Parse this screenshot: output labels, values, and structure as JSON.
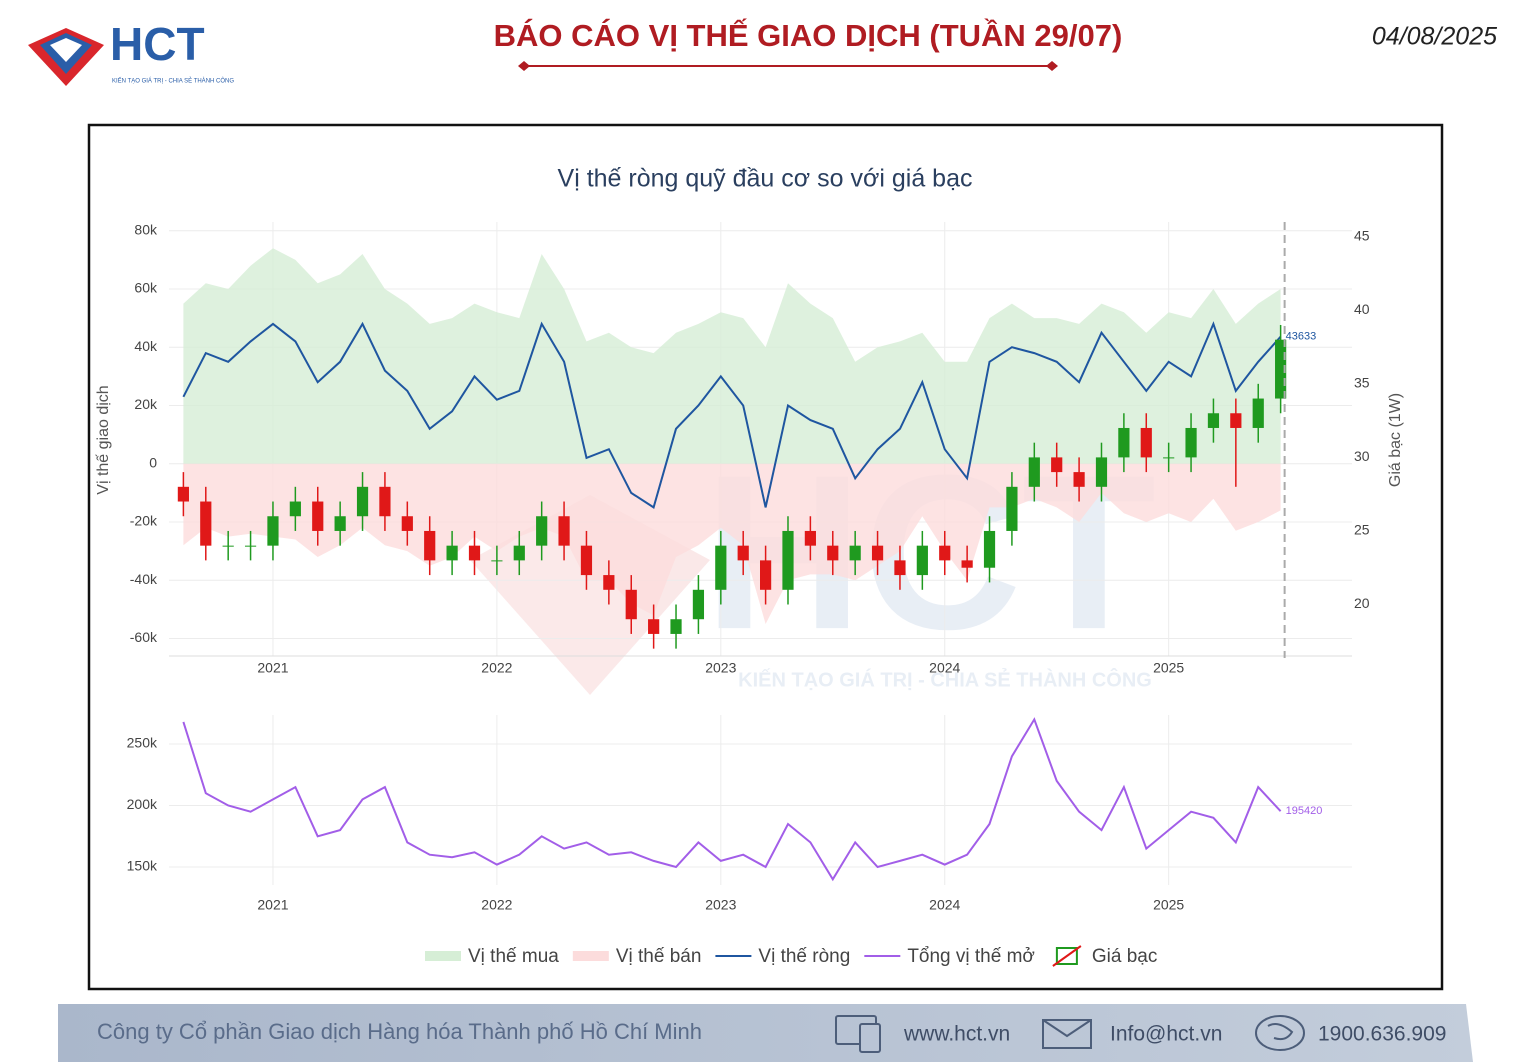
{
  "header": {
    "brand": "HCT",
    "tagline": "KIẾN TẠO GIÁ TRỊ - CHIA SẺ THÀNH CÔNG",
    "title": "BÁO CÁO VỊ THẾ GIAO DỊCH (TUẦN 29/07)",
    "date": "04/08/2025"
  },
  "chart_data": {
    "type": "combo",
    "title": "Vị thế ròng quỹ đầu cơ so với giá bạc",
    "ylabel": "Vị thế giao dịch",
    "y2label": "Giá bạc (1W)",
    "grid": true,
    "x": [
      2020.6,
      2020.7,
      2020.8,
      2020.9,
      2021.0,
      2021.1,
      2021.2,
      2021.3,
      2021.4,
      2021.5,
      2021.6,
      2021.7,
      2021.8,
      2021.9,
      2022.0,
      2022.1,
      2022.2,
      2022.3,
      2022.4,
      2022.5,
      2022.6,
      2022.7,
      2022.8,
      2022.9,
      2023.0,
      2023.1,
      2023.2,
      2023.3,
      2023.4,
      2023.5,
      2023.6,
      2023.7,
      2023.8,
      2023.9,
      2024.0,
      2024.1,
      2024.2,
      2024.3,
      2024.4,
      2024.5,
      2024.6,
      2024.7,
      2024.8,
      2024.9,
      2025.0,
      2025.1,
      2025.2,
      2025.3,
      2025.4,
      2025.5
    ],
    "xlim": [
      2020.5,
      2025.85
    ],
    "xticks": [
      2021,
      2022,
      2023,
      2024,
      2025
    ],
    "ylim": [
      -66000,
      83000
    ],
    "yticks": [
      {
        "value": -60000,
        "label": "-60k"
      },
      {
        "value": -40000,
        "label": "-40k"
      },
      {
        "value": -20000,
        "label": "-20k"
      },
      0,
      {
        "value": 20000,
        "label": "20k"
      },
      {
        "value": 40000,
        "label": "40k"
      },
      {
        "value": 60000,
        "label": "60k"
      },
      {
        "value": 80000,
        "label": "80k"
      }
    ],
    "y2lim": [
      16.5,
      46
    ],
    "y2ticks": [
      20,
      25,
      30,
      35,
      40,
      45
    ],
    "y3lim": [
      135400,
      273600
    ],
    "y3ticks": [
      {
        "value": 150000,
        "label": "150k"
      },
      {
        "value": 200000,
        "label": "200k"
      },
      {
        "value": 250000,
        "label": "250k"
      }
    ],
    "series": [
      {
        "name": "Vị thế mua",
        "type": "area",
        "color": "#d6eed6",
        "values": [
          55000,
          62000,
          60000,
          68000,
          74000,
          70000,
          62000,
          65000,
          72000,
          60000,
          55000,
          48000,
          50000,
          55000,
          52000,
          50000,
          72000,
          60000,
          42000,
          45000,
          40000,
          38000,
          45000,
          48000,
          52000,
          50000,
          40000,
          62000,
          55000,
          50000,
          35000,
          40000,
          42000,
          45000,
          35000,
          35000,
          50000,
          55000,
          50000,
          50000,
          48000,
          55000,
          52000,
          45000,
          52000,
          50000,
          60000,
          48000,
          55000,
          60000
        ]
      },
      {
        "name": "Vị thế bán",
        "type": "area",
        "color": "#fcdcdc",
        "values": [
          -28000,
          -22000,
          -25000,
          -24000,
          -25000,
          -26000,
          -32000,
          -28000,
          -22000,
          -28000,
          -30000,
          -35000,
          -32000,
          -25000,
          -30000,
          -25000,
          -22000,
          -25000,
          -40000,
          -40000,
          -48000,
          -52000,
          -32000,
          -28000,
          -22000,
          -28000,
          -55000,
          -40000,
          -38000,
          -38000,
          -40000,
          -35000,
          -30000,
          -18000,
          -30000,
          -40000,
          -15000,
          -15000,
          -12000,
          -15000,
          -20000,
          -10000,
          -17000,
          -20000,
          -17000,
          -20000,
          -12000,
          -23000,
          -20000,
          -16000
        ]
      },
      {
        "name": "Vị thế ròng",
        "type": "line",
        "color": "#1f56a0",
        "values": [
          23000,
          38000,
          35000,
          42000,
          48000,
          42000,
          28000,
          35000,
          48000,
          32000,
          25000,
          12000,
          18000,
          30000,
          22000,
          25000,
          48000,
          35000,
          2000,
          5000,
          -10000,
          -15000,
          12000,
          20000,
          30000,
          20000,
          -15000,
          20000,
          15000,
          12000,
          -5000,
          5000,
          12000,
          28000,
          5000,
          -5000,
          35000,
          40000,
          38000,
          35000,
          28000,
          45000,
          35000,
          25000,
          35000,
          30000,
          48000,
          25000,
          35000,
          43633
        ]
      },
      {
        "name": "Tổng vị thế mở",
        "type": "line",
        "axis": "y3",
        "color": "#a25ee8",
        "values": [
          268000,
          210000,
          200000,
          195000,
          205000,
          215000,
          175000,
          180000,
          205000,
          215000,
          170000,
          160000,
          158000,
          162000,
          152000,
          160000,
          175000,
          165000,
          170000,
          160000,
          162000,
          155000,
          150000,
          170000,
          155000,
          160000,
          150000,
          185000,
          170000,
          140000,
          170000,
          150000,
          155000,
          160000,
          152000,
          160000,
          185000,
          240000,
          270000,
          220000,
          195000,
          180000,
          215000,
          165000,
          180000,
          195000,
          190000,
          170000,
          215000,
          195420
        ]
      },
      {
        "name": "Giá bạc",
        "type": "candlestick",
        "axis": "y2",
        "increasing_color": "#1f9a1f",
        "decreasing_color": "#e01818",
        "open": [
          28,
          27,
          24,
          24,
          24,
          26,
          27,
          25,
          26,
          28,
          26,
          25,
          23,
          24,
          23,
          23,
          24,
          26,
          24,
          22,
          21,
          19,
          18,
          19,
          21,
          24,
          23,
          21,
          25,
          24,
          23,
          24,
          23,
          22,
          24,
          23,
          22.5,
          25,
          28,
          30,
          29,
          28,
          30,
          32,
          30,
          30,
          32,
          33,
          32,
          34
        ],
        "close": [
          27,
          24,
          24,
          24,
          26,
          27,
          25,
          26,
          28,
          26,
          25,
          23,
          24,
          23,
          23,
          24,
          26,
          24,
          22,
          21,
          19,
          18,
          19,
          21,
          24,
          23,
          21,
          25,
          24,
          23,
          24,
          23,
          22,
          24,
          23,
          22.5,
          25,
          28,
          30,
          29,
          28,
          30,
          32,
          30,
          30,
          32,
          33,
          32,
          34,
          38
        ],
        "high": [
          29,
          28,
          25,
          25,
          27,
          28,
          28,
          27,
          29,
          29,
          27,
          26,
          25,
          25,
          24,
          25,
          27,
          27,
          25,
          23,
          22,
          20,
          20,
          22,
          25,
          25,
          24,
          26,
          26,
          25,
          25,
          25,
          24,
          25,
          25,
          24,
          26,
          29,
          31,
          31,
          30,
          31,
          33,
          33,
          31,
          33,
          34,
          34,
          35,
          39
        ],
        "low": [
          26,
          23,
          23,
          23,
          23,
          25,
          24,
          24,
          25,
          25,
          24,
          22,
          22,
          22,
          22,
          22,
          23,
          23,
          21,
          20,
          18,
          17,
          17,
          18,
          20,
          22,
          20,
          20,
          23,
          22,
          22,
          22,
          21,
          21,
          22,
          21.5,
          21.5,
          24,
          27,
          28,
          27,
          27,
          29,
          29,
          29,
          29,
          31,
          28,
          31,
          33
        ]
      }
    ]
  },
  "footer": {
    "company": "Công ty Cổ phần Giao dịch Hàng hóa Thành phố Hồ Chí Minh",
    "website": "www.hct.vn",
    "email": "Info@hct.vn",
    "phone": "1900.636.909"
  }
}
